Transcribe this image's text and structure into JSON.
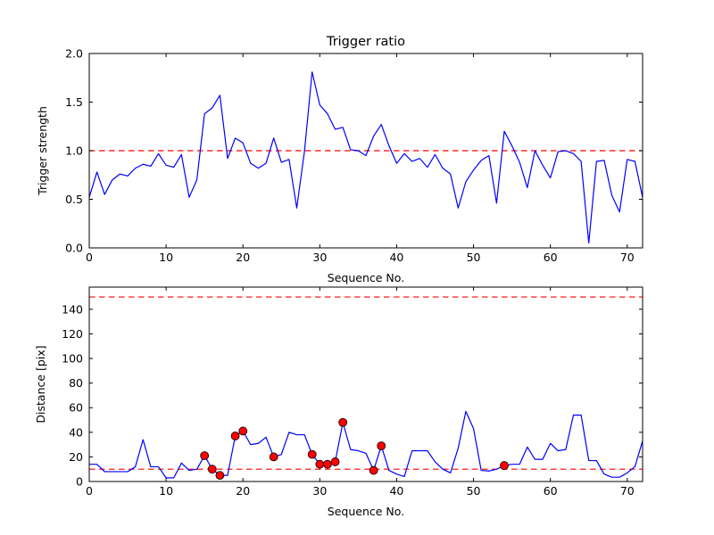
{
  "figure": {
    "title": "Trigger ratio",
    "colors": {
      "background": "#ffffff",
      "line": "#0000ff",
      "threshold": "#ff0000",
      "marker_fill": "#ff0000",
      "marker_edge": "#000000",
      "axis": "#000000"
    }
  },
  "chart_data": [
    {
      "type": "line",
      "title": "Trigger ratio",
      "xlabel": "Sequence No.",
      "ylabel": "Trigger strength",
      "xlim": [
        0,
        72
      ],
      "ylim": [
        0,
        2.0
      ],
      "grid": false,
      "legend": null,
      "xticks": [
        0,
        10,
        20,
        30,
        40,
        50,
        60,
        70
      ],
      "xtick_labels": [
        "0",
        "10",
        "20",
        "30",
        "40",
        "50",
        "60",
        "70"
      ],
      "yticks": [
        0.0,
        0.5,
        1.0,
        1.5,
        2.0
      ],
      "ytick_labels": [
        "0.0",
        "0.5",
        "1.0",
        "1.5",
        "2.0"
      ],
      "threshold_lines": [
        1.0
      ],
      "x": [
        0,
        1,
        2,
        3,
        4,
        5,
        6,
        7,
        8,
        9,
        10,
        11,
        12,
        13,
        14,
        15,
        16,
        17,
        18,
        19,
        20,
        21,
        22,
        23,
        24,
        25,
        26,
        27,
        28,
        29,
        30,
        31,
        32,
        33,
        34,
        35,
        36,
        37,
        38,
        39,
        40,
        41,
        42,
        43,
        44,
        45,
        46,
        47,
        48,
        49,
        50,
        51,
        52,
        53,
        54,
        55,
        56,
        57,
        58,
        59,
        60,
        61,
        62,
        63,
        64,
        65,
        66,
        67,
        68,
        69,
        70,
        71,
        72
      ],
      "y": [
        0.52,
        0.78,
        0.55,
        0.7,
        0.76,
        0.74,
        0.82,
        0.86,
        0.84,
        0.97,
        0.85,
        0.83,
        0.96,
        0.52,
        0.7,
        1.38,
        1.44,
        1.57,
        0.92,
        1.13,
        1.08,
        0.87,
        0.82,
        0.87,
        1.13,
        0.88,
        0.91,
        0.41,
        0.99,
        1.81,
        1.47,
        1.38,
        1.22,
        1.24,
        1.01,
        1.0,
        0.95,
        1.15,
        1.27,
        1.05,
        0.87,
        0.97,
        0.89,
        0.92,
        0.83,
        0.96,
        0.82,
        0.76,
        0.41,
        0.68,
        0.8,
        0.9,
        0.95,
        0.46,
        1.2,
        1.05,
        0.88,
        0.62,
        1.0,
        0.85,
        0.72,
        0.99,
        1.0,
        0.97,
        0.89,
        0.05,
        0.89,
        0.9,
        0.54,
        0.37,
        0.91,
        0.89,
        0.52
      ]
    },
    {
      "type": "line",
      "title": "",
      "xlabel": "Sequence No.",
      "ylabel": "Distance [pix]",
      "xlim": [
        0,
        72
      ],
      "ylim": [
        0,
        158
      ],
      "grid": false,
      "legend": null,
      "xticks": [
        0,
        10,
        20,
        30,
        40,
        50,
        60,
        70
      ],
      "xtick_labels": [
        "0",
        "10",
        "20",
        "30",
        "40",
        "50",
        "60",
        "70"
      ],
      "yticks": [
        0,
        20,
        40,
        60,
        80,
        100,
        120,
        140
      ],
      "ytick_labels": [
        "0",
        "20",
        "40",
        "60",
        "80",
        "100",
        "120",
        "140"
      ],
      "threshold_lines": [
        150,
        10
      ],
      "x": [
        0,
        1,
        2,
        3,
        4,
        5,
        6,
        7,
        8,
        9,
        10,
        11,
        12,
        13,
        14,
        15,
        16,
        17,
        18,
        19,
        20,
        21,
        22,
        23,
        24,
        25,
        26,
        27,
        28,
        29,
        30,
        31,
        32,
        33,
        34,
        35,
        36,
        37,
        38,
        39,
        40,
        41,
        42,
        43,
        44,
        45,
        46,
        47,
        48,
        49,
        50,
        51,
        52,
        53,
        54,
        55,
        56,
        57,
        58,
        59,
        60,
        61,
        62,
        63,
        64,
        65,
        66,
        67,
        68,
        69,
        70,
        71,
        72
      ],
      "y": [
        14,
        14,
        8,
        8,
        8,
        8,
        12,
        34,
        12,
        12,
        3,
        3,
        15,
        9,
        10,
        21,
        10,
        5,
        5,
        37,
        41,
        30,
        31,
        36,
        20,
        22,
        40,
        38,
        38,
        22,
        14,
        14,
        16,
        48,
        26,
        25,
        23,
        9,
        29,
        9,
        6,
        4,
        25,
        25,
        25,
        16,
        10,
        7,
        27,
        57,
        43,
        9,
        8.5,
        10,
        13,
        14,
        14,
        28,
        18,
        18,
        31,
        25,
        26,
        54,
        54,
        17,
        17,
        6,
        3.5,
        3.5,
        7,
        12,
        33
      ],
      "markers": {
        "x": [
          15,
          16,
          17,
          19,
          20,
          24,
          29,
          30,
          31,
          32,
          33,
          37,
          38,
          54
        ],
        "y": [
          21,
          10,
          5,
          37,
          41,
          20,
          22,
          14,
          14,
          16,
          48,
          9,
          29,
          13
        ]
      }
    }
  ]
}
